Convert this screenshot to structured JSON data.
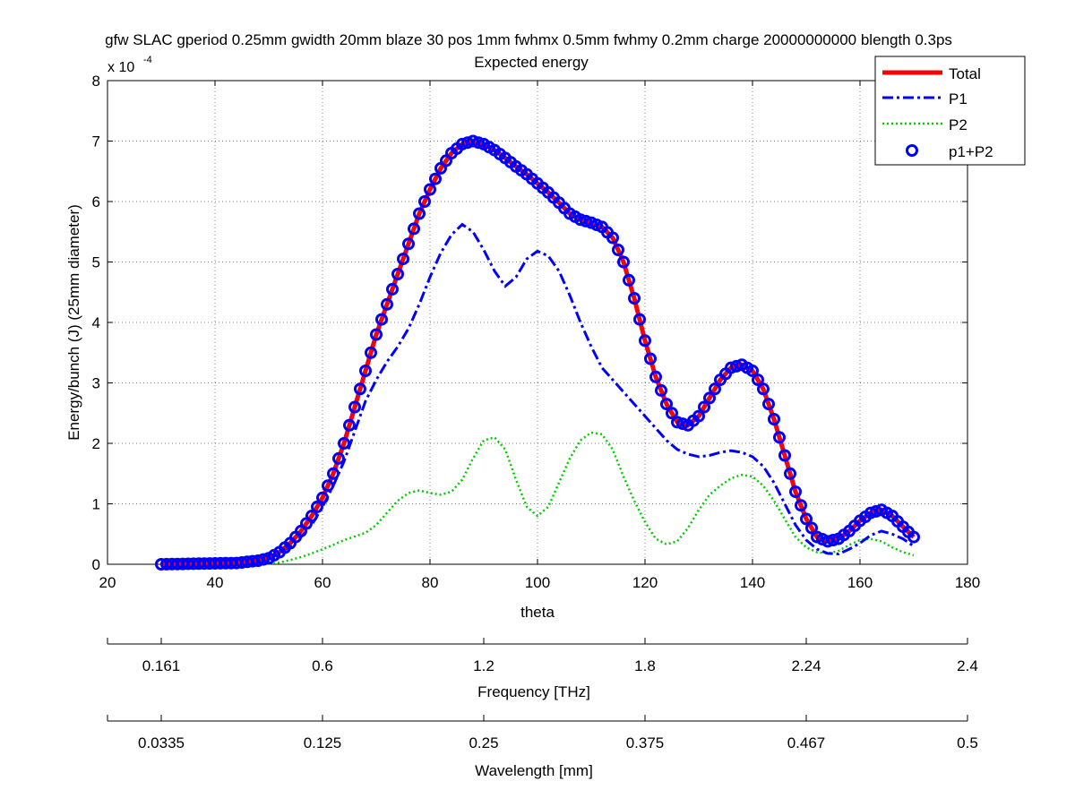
{
  "chart_data": {
    "type": "line",
    "title": "gfw SLAC gperiod 0.25mm gwidth 20mm blaze 30 pos 1mm fwhmx 0.5mm fwhmy 0.2mm charge 20000000000 blength 0.3ps",
    "subtitle": "Expected energy",
    "xlabel": "theta",
    "ylabel": "Energy/bunch (J) (25mm diameter)",
    "y_multiplier_base": "x 10",
    "y_multiplier_exp": "-4",
    "xlim": [
      20,
      180
    ],
    "ylim": [
      0,
      8
    ],
    "x_ticks": [
      "20",
      "40",
      "60",
      "80",
      "100",
      "120",
      "140",
      "160",
      "180"
    ],
    "y_ticks": [
      "0",
      "1",
      "2",
      "3",
      "4",
      "5",
      "6",
      "7",
      "8"
    ],
    "grid": true,
    "legend_position": "top-right",
    "colors": {
      "total": "#ff0000",
      "p1": "#0000ff",
      "p2": "#00cc00",
      "sum": "#0000ff",
      "grid": "#7f7f7f"
    },
    "series": [
      {
        "name": "Total",
        "style": "solid",
        "x": [
          30,
          44,
          48,
          50,
          52,
          54,
          56,
          58,
          60,
          62,
          64,
          66,
          68,
          70,
          72,
          74,
          76,
          78,
          80,
          82,
          84,
          86,
          88,
          90,
          92,
          94,
          96,
          98,
          100,
          102,
          104,
          106,
          108,
          110,
          112,
          114,
          116,
          118,
          120,
          122,
          124,
          126,
          128,
          130,
          132,
          134,
          136,
          138,
          140,
          142,
          144,
          146,
          148,
          150,
          152,
          154,
          156,
          158,
          160,
          162,
          164,
          166,
          168,
          170
        ],
        "values": [
          0.0,
          0.02,
          0.06,
          0.1,
          0.2,
          0.35,
          0.55,
          0.8,
          1.1,
          1.5,
          2.0,
          2.6,
          3.2,
          3.8,
          4.3,
          4.8,
          5.3,
          5.8,
          6.2,
          6.55,
          6.8,
          6.95,
          7.0,
          6.95,
          6.85,
          6.72,
          6.58,
          6.45,
          6.3,
          6.15,
          5.98,
          5.8,
          5.7,
          5.65,
          5.58,
          5.4,
          5.0,
          4.4,
          3.7,
          3.1,
          2.65,
          2.35,
          2.3,
          2.45,
          2.75,
          3.05,
          3.25,
          3.3,
          3.2,
          2.9,
          2.4,
          1.8,
          1.2,
          0.75,
          0.45,
          0.38,
          0.42,
          0.55,
          0.72,
          0.85,
          0.9,
          0.8,
          0.62,
          0.45
        ]
      },
      {
        "name": "P1",
        "style": "dashdot",
        "x": [
          30,
          44,
          48,
          50,
          52,
          54,
          56,
          58,
          60,
          62,
          64,
          66,
          68,
          70,
          72,
          74,
          76,
          78,
          80,
          82,
          84,
          86,
          88,
          90,
          92,
          94,
          96,
          98,
          100,
          102,
          104,
          106,
          108,
          110,
          112,
          114,
          116,
          118,
          120,
          122,
          124,
          126,
          128,
          130,
          132,
          134,
          136,
          138,
          140,
          142,
          144,
          146,
          148,
          150,
          152,
          154,
          156,
          158,
          160,
          162,
          164,
          166,
          168,
          170
        ],
        "values": [
          0.0,
          0.02,
          0.06,
          0.1,
          0.18,
          0.3,
          0.45,
          0.65,
          0.95,
          1.3,
          1.7,
          2.2,
          2.7,
          3.05,
          3.35,
          3.6,
          3.9,
          4.3,
          4.75,
          5.15,
          5.45,
          5.62,
          5.5,
          5.2,
          4.85,
          4.6,
          4.75,
          5.05,
          5.18,
          5.1,
          4.85,
          4.45,
          4.0,
          3.6,
          3.25,
          3.05,
          2.85,
          2.65,
          2.45,
          2.25,
          2.05,
          1.9,
          1.82,
          1.78,
          1.8,
          1.85,
          1.88,
          1.85,
          1.78,
          1.62,
          1.35,
          1.0,
          0.65,
          0.4,
          0.25,
          0.18,
          0.17,
          0.25,
          0.35,
          0.48,
          0.55,
          0.5,
          0.42,
          0.3
        ]
      },
      {
        "name": "P2",
        "style": "dotted",
        "x": [
          30,
          44,
          48,
          50,
          52,
          54,
          56,
          58,
          60,
          62,
          64,
          66,
          68,
          70,
          72,
          74,
          76,
          78,
          80,
          82,
          84,
          86,
          88,
          90,
          92,
          94,
          96,
          98,
          100,
          102,
          104,
          106,
          108,
          110,
          112,
          114,
          116,
          118,
          120,
          122,
          124,
          126,
          128,
          130,
          132,
          134,
          136,
          138,
          140,
          142,
          144,
          146,
          148,
          150,
          152,
          154,
          156,
          158,
          160,
          162,
          164,
          166,
          168,
          170
        ],
        "values": [
          0.0,
          0.0,
          0.0,
          0.01,
          0.03,
          0.07,
          0.12,
          0.18,
          0.25,
          0.32,
          0.4,
          0.46,
          0.52,
          0.65,
          0.85,
          1.05,
          1.18,
          1.22,
          1.18,
          1.15,
          1.2,
          1.4,
          1.75,
          2.05,
          2.1,
          1.9,
          1.4,
          0.95,
          0.8,
          0.95,
          1.35,
          1.75,
          2.05,
          2.18,
          2.15,
          1.9,
          1.45,
          1.05,
          0.7,
          0.42,
          0.33,
          0.38,
          0.6,
          0.9,
          1.15,
          1.3,
          1.42,
          1.48,
          1.45,
          1.3,
          1.05,
          0.75,
          0.45,
          0.28,
          0.2,
          0.18,
          0.22,
          0.32,
          0.4,
          0.42,
          0.38,
          0.28,
          0.2,
          0.15
        ]
      },
      {
        "name": "p1+P2",
        "style": "circles",
        "x_start": 30,
        "x_step": 1,
        "x_end": 170
      }
    ],
    "secondary_axes": [
      {
        "label": "Frequency [THz]",
        "ticks": [
          "0.161",
          "0.6",
          "1.2",
          "1.8",
          "2.24",
          "2.4"
        ],
        "tick_theta": [
          30,
          60,
          90,
          120,
          150,
          180
        ]
      },
      {
        "label": "Wavelength [mm]",
        "ticks": [
          "0.0335",
          "0.125",
          "0.25",
          "0.375",
          "0.467",
          "0.5"
        ],
        "tick_theta": [
          30,
          60,
          90,
          120,
          150,
          180
        ]
      }
    ]
  }
}
